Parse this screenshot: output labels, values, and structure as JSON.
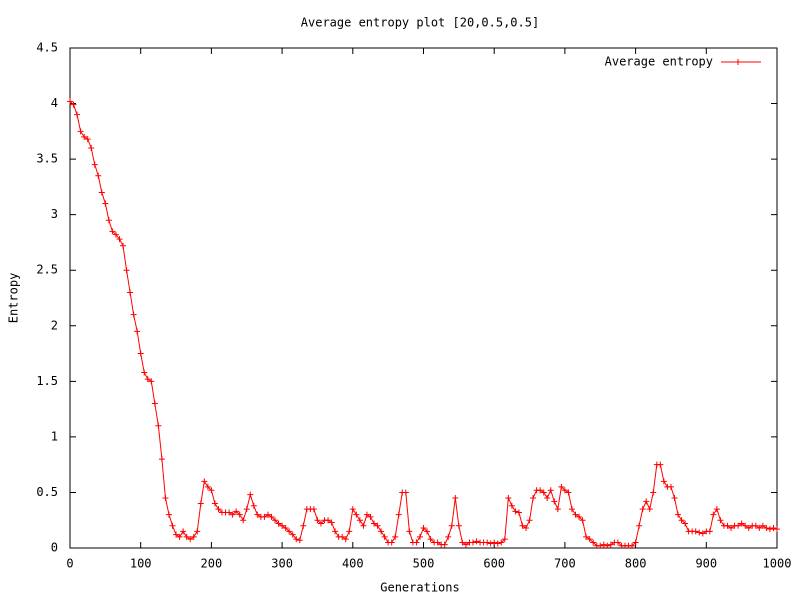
{
  "chart_data": {
    "type": "line",
    "title": "Average entropy plot [20,0.5,0.5]",
    "x_label": "Generations",
    "y_label": "Entropy",
    "x": [
      0,
      5,
      10,
      15,
      20,
      25,
      30,
      35,
      40,
      45,
      50,
      55,
      60,
      65,
      70,
      75,
      80,
      85,
      90,
      95,
      100,
      105,
      110,
      115,
      120,
      125,
      130,
      135,
      140,
      145,
      150,
      155,
      160,
      165,
      170,
      175,
      180,
      185,
      190,
      195,
      200,
      205,
      210,
      215,
      220,
      225,
      230,
      235,
      240,
      245,
      250,
      255,
      260,
      265,
      270,
      275,
      280,
      285,
      290,
      295,
      300,
      305,
      310,
      315,
      320,
      325,
      330,
      335,
      340,
      345,
      350,
      355,
      360,
      365,
      370,
      375,
      380,
      385,
      390,
      395,
      400,
      405,
      410,
      415,
      420,
      425,
      430,
      435,
      440,
      445,
      450,
      455,
      460,
      465,
      470,
      475,
      480,
      485,
      490,
      495,
      500,
      505,
      510,
      515,
      520,
      525,
      530,
      535,
      540,
      545,
      550,
      555,
      560,
      565,
      570,
      575,
      580,
      585,
      590,
      595,
      600,
      605,
      610,
      615,
      620,
      625,
      630,
      635,
      640,
      645,
      650,
      655,
      660,
      665,
      670,
      675,
      680,
      685,
      690,
      695,
      700,
      705,
      710,
      715,
      720,
      725,
      730,
      735,
      740,
      745,
      750,
      755,
      760,
      765,
      770,
      775,
      780,
      785,
      790,
      795,
      800,
      805,
      810,
      815,
      820,
      825,
      830,
      835,
      840,
      845,
      850,
      855,
      860,
      865,
      870,
      875,
      880,
      885,
      890,
      895,
      900,
      905,
      910,
      915,
      920,
      925,
      930,
      935,
      940,
      945,
      950,
      955,
      960,
      965,
      970,
      975,
      980,
      985,
      990,
      995,
      1000
    ],
    "series": [
      {
        "name": "Average entropy",
        "color": "#ff0000",
        "values": [
          4.02,
          3.99,
          3.9,
          3.75,
          3.7,
          3.68,
          3.6,
          3.45,
          3.35,
          3.2,
          3.1,
          2.95,
          2.85,
          2.82,
          2.78,
          2.72,
          2.5,
          2.3,
          2.1,
          1.95,
          1.75,
          1.58,
          1.52,
          1.5,
          1.3,
          1.1,
          0.8,
          0.45,
          0.3,
          0.2,
          0.12,
          0.1,
          0.15,
          0.1,
          0.08,
          0.1,
          0.15,
          0.4,
          0.6,
          0.55,
          0.52,
          0.4,
          0.35,
          0.32,
          0.32,
          0.32,
          0.3,
          0.33,
          0.3,
          0.25,
          0.35,
          0.48,
          0.38,
          0.3,
          0.28,
          0.28,
          0.3,
          0.28,
          0.25,
          0.22,
          0.2,
          0.18,
          0.15,
          0.12,
          0.08,
          0.07,
          0.2,
          0.35,
          0.35,
          0.35,
          0.25,
          0.22,
          0.25,
          0.25,
          0.23,
          0.15,
          0.1,
          0.1,
          0.08,
          0.15,
          0.35,
          0.3,
          0.25,
          0.2,
          0.3,
          0.28,
          0.22,
          0.2,
          0.15,
          0.1,
          0.05,
          0.05,
          0.1,
          0.3,
          0.5,
          0.5,
          0.15,
          0.05,
          0.05,
          0.1,
          0.18,
          0.15,
          0.08,
          0.05,
          0.05,
          0.03,
          0.03,
          0.1,
          0.2,
          0.45,
          0.2,
          0.05,
          0.03,
          0.05,
          0.05,
          0.06,
          0.05,
          0.05,
          0.05,
          0.04,
          0.05,
          0.04,
          0.05,
          0.08,
          0.45,
          0.38,
          0.33,
          0.32,
          0.2,
          0.18,
          0.25,
          0.45,
          0.52,
          0.52,
          0.5,
          0.45,
          0.52,
          0.42,
          0.35,
          0.55,
          0.52,
          0.5,
          0.35,
          0.3,
          0.28,
          0.25,
          0.1,
          0.08,
          0.05,
          0.02,
          0.02,
          0.03,
          0.02,
          0.03,
          0.05,
          0.05,
          0.02,
          0.02,
          0.02,
          0.02,
          0.05,
          0.2,
          0.35,
          0.42,
          0.35,
          0.5,
          0.75,
          0.75,
          0.6,
          0.55,
          0.55,
          0.45,
          0.3,
          0.25,
          0.22,
          0.15,
          0.15,
          0.15,
          0.14,
          0.13,
          0.15,
          0.15,
          0.3,
          0.35,
          0.25,
          0.2,
          0.2,
          0.18,
          0.2,
          0.2,
          0.22,
          0.2,
          0.18,
          0.2,
          0.2,
          0.18,
          0.2,
          0.18,
          0.17,
          0.18,
          0.17
        ]
      }
    ],
    "xlim": [
      0,
      1000
    ],
    "xticks": [
      0,
      100,
      200,
      300,
      400,
      500,
      600,
      700,
      800,
      900,
      1000
    ],
    "ylim": [
      0,
      4.5
    ],
    "yticks": [
      0,
      0.5,
      1,
      1.5,
      2,
      2.5,
      3,
      3.5,
      4,
      4.5
    ],
    "grid": false,
    "legend": "top-right"
  }
}
